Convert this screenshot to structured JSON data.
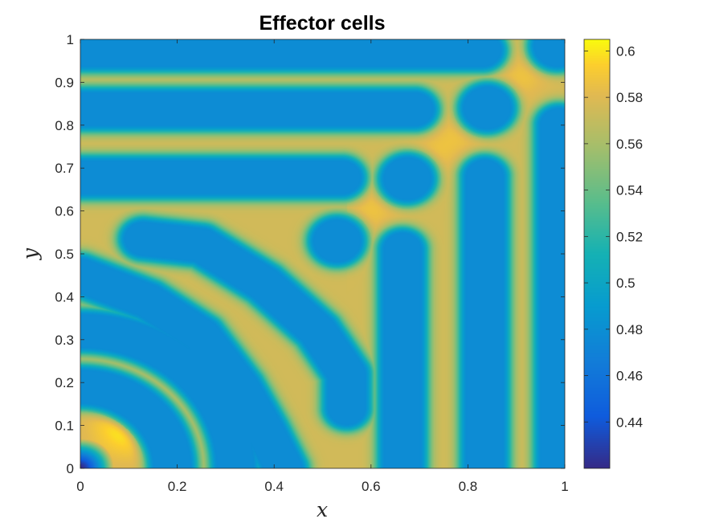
{
  "chart_data": {
    "type": "heatmap",
    "title": "Effector cells",
    "xlabel": "x",
    "ylabel": "y",
    "xlim": [
      0,
      1
    ],
    "ylim": [
      0,
      1
    ],
    "x_ticks": [
      "0",
      "0.2",
      "0.4",
      "0.6",
      "0.8",
      "1"
    ],
    "y_ticks": [
      "0",
      "0.1",
      "0.2",
      "0.3",
      "0.4",
      "0.5",
      "0.6",
      "0.7",
      "0.8",
      "0.9",
      "1"
    ],
    "colorbar": {
      "colormap": "parula",
      "clim": [
        0.42,
        0.605
      ],
      "ticks": [
        "0.44",
        "0.46",
        "0.48",
        "0.5",
        "0.52",
        "0.54",
        "0.56",
        "0.58",
        "0.6"
      ]
    },
    "features": {
      "background_level": 0.575,
      "stripe_level": 0.478,
      "min_level": 0.42,
      "max_level": 0.605,
      "min_location": [
        0.0,
        0.0
      ],
      "max_region": [
        0.1,
        0.1
      ],
      "horizontal_stripes": [
        {
          "y": 0.975,
          "x_from": 0.0,
          "x_to": 0.83
        },
        {
          "y": 0.837,
          "x_from": 0.0,
          "x_to": 0.69
        },
        {
          "y": 0.678,
          "x_from": 0.0,
          "x_to": 0.54
        }
      ],
      "vertical_stripes": [
        {
          "x": 0.988,
          "y_from": 0.0,
          "y_to": 0.8
        },
        {
          "x": 0.835,
          "y_from": 0.0,
          "y_to": 0.68
        },
        {
          "x": 0.665,
          "y_from": 0.0,
          "y_to": 0.51
        }
      ],
      "spots": [
        [
          0.84,
          0.84
        ],
        [
          0.675,
          0.675
        ],
        [
          0.53,
          0.53
        ],
        [
          0.985,
          0.985
        ]
      ],
      "corner_arc_radii": [
        0.07,
        0.19,
        0.32
      ],
      "curved_stripes": [
        [
          [
            0.13,
            0.535
          ],
          [
            0.25,
            0.52
          ],
          [
            0.38,
            0.43
          ],
          [
            0.49,
            0.32
          ],
          [
            0.55,
            0.22
          ],
          [
            0.55,
            0.14
          ]
        ],
        [
          [
            0.0,
            0.45
          ],
          [
            0.14,
            0.39
          ],
          [
            0.25,
            0.31
          ],
          [
            0.33,
            0.19
          ],
          [
            0.38,
            0.09
          ],
          [
            0.42,
            0.0
          ]
        ]
      ]
    }
  }
}
